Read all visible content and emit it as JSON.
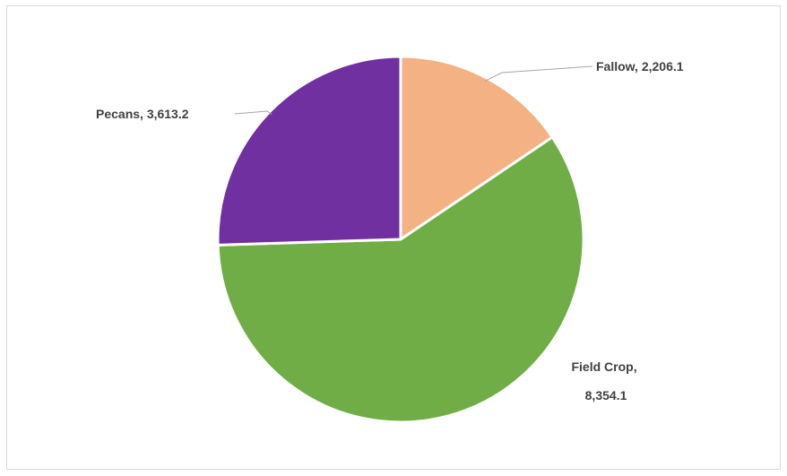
{
  "chart_data": {
    "type": "pie",
    "title": "",
    "categories": [
      "Fallow",
      "Field Crop",
      "Pecans"
    ],
    "values": [
      2206.1,
      8354.1,
      3613.2
    ],
    "colors": [
      "#F4B183",
      "#70AD47",
      "#7030A0"
    ],
    "data_labels": [
      {
        "category": "Fallow",
        "value": "2,206.1",
        "text": "Fallow, 2,206.1"
      },
      {
        "category": "Field Crop",
        "value": "8,354.1",
        "text_lines": [
          "Field Crop,",
          "8,354.1"
        ]
      },
      {
        "category": "Pecans",
        "value": "3,613.2",
        "text": "Pecans, 3,613.2"
      }
    ],
    "legend": "none",
    "grid": false
  }
}
